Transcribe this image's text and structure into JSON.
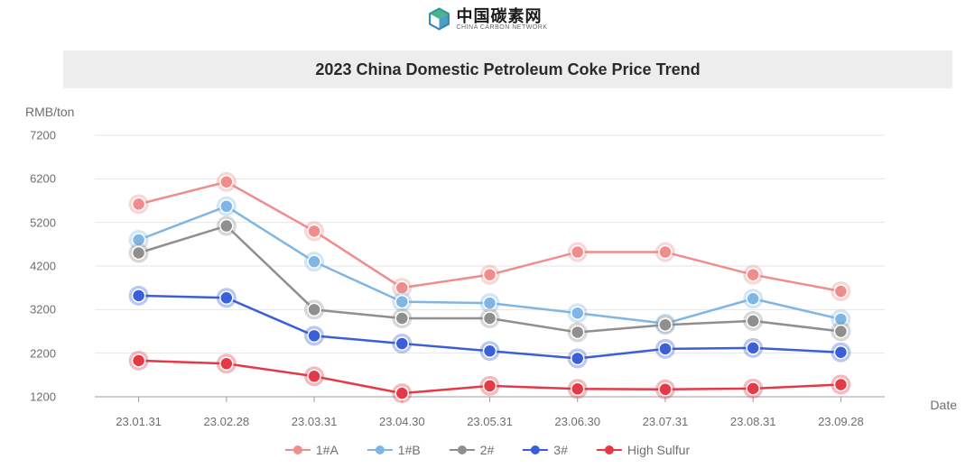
{
  "logo": {
    "cn": "中国碳素网",
    "en": "CHINA CARBON NETWORK",
    "icon_color_a": "#2d8bb8",
    "icon_color_b": "#2aa876"
  },
  "chart": {
    "type": "line",
    "title": "2023 China Domestic Petroleum Coke Price Trend",
    "title_fontsize": 18,
    "title_bg": "#ededed",
    "y_axis_label": "RMB/ton",
    "x_axis_label": "Date",
    "label_color": "#6e6e6e",
    "label_fontsize": 14,
    "tick_fontsize": 13,
    "background_color": "#ffffff",
    "grid_color": "#e6e6e6",
    "axis_line_color": "#9e9e9e",
    "line_width": 2.5,
    "marker_radius": 7,
    "marker_halo_radius": 11,
    "marker_halo_opacity": 0.35,
    "ylim": [
      1200,
      7200
    ],
    "ytick_step": 1000,
    "yticks": [
      1200,
      2200,
      3200,
      4200,
      5200,
      6200,
      7200
    ],
    "categories": [
      "23.01.31",
      "23.02.28",
      "23.03.31",
      "23.04.30",
      "23.05.31",
      "23.06.30",
      "23.07.31",
      "23.08.31",
      "23.09.28"
    ],
    "series": [
      {
        "name": "1#A",
        "color": "#f08c8c",
        "values": [
          5620,
          6130,
          5000,
          3700,
          4000,
          4520,
          4520,
          4000,
          3620
        ]
      },
      {
        "name": "1#B",
        "color": "#7fb6e5",
        "values": [
          4800,
          5570,
          4300,
          3380,
          3350,
          3120,
          2880,
          3450,
          2980
        ]
      },
      {
        "name": "2#",
        "color": "#8f8f8f",
        "values": [
          4500,
          5120,
          3200,
          3000,
          3000,
          2680,
          2850,
          2940,
          2700
        ]
      },
      {
        "name": "3#",
        "color": "#3a5fd9",
        "values": [
          3520,
          3470,
          2600,
          2420,
          2250,
          2080,
          2300,
          2320,
          2220
        ]
      },
      {
        "name": "High Sulfur",
        "color": "#e63946",
        "values": [
          2030,
          1960,
          1670,
          1280,
          1450,
          1380,
          1370,
          1390,
          1480
        ]
      }
    ]
  }
}
